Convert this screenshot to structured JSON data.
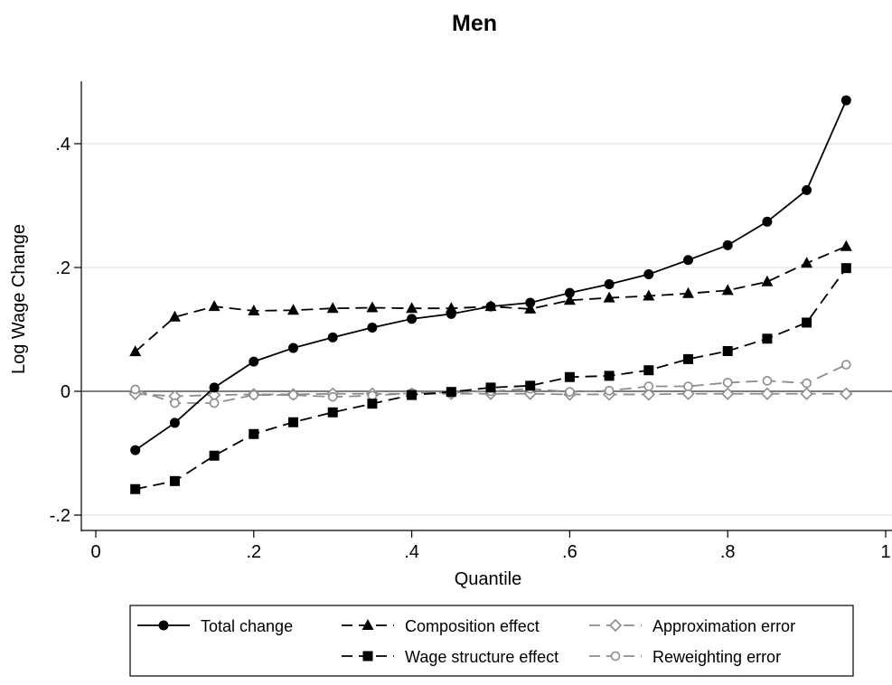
{
  "chart_data": {
    "type": "line",
    "title": "Men",
    "xlabel": "Quantile",
    "ylabel": "Log Wage Change",
    "xlim": [
      0,
      1
    ],
    "ylim": [
      -0.2,
      0.5
    ],
    "x_ticks": [
      0,
      0.2,
      0.4,
      0.6,
      0.8,
      1
    ],
    "x_tick_labels": [
      "0",
      ".2",
      ".4",
      ".6",
      ".8",
      "1"
    ],
    "y_ticks": [
      -0.2,
      0,
      0.2,
      0.4
    ],
    "y_tick_labels": [
      "-.2",
      "0",
      ".2",
      ".4"
    ],
    "grid": true,
    "reference_line": 0,
    "x": [
      0.05,
      0.1,
      0.15,
      0.2,
      0.25,
      0.3,
      0.35,
      0.4,
      0.45,
      0.5,
      0.55,
      0.6,
      0.65,
      0.7,
      0.75,
      0.8,
      0.85,
      0.9,
      0.95
    ],
    "series": [
      {
        "name": "Total change",
        "color": "#000000",
        "marker": "circle-filled",
        "dash": "solid",
        "values": [
          -0.095,
          -0.051,
          0.006,
          0.048,
          0.07,
          0.087,
          0.103,
          0.117,
          0.125,
          0.137,
          0.143,
          0.159,
          0.173,
          0.189,
          0.212,
          0.236,
          0.274,
          0.325,
          0.47
        ]
      },
      {
        "name": "Composition effect",
        "color": "#000000",
        "marker": "triangle-filled",
        "dash": "dashed",
        "values": [
          0.064,
          0.12,
          0.137,
          0.13,
          0.131,
          0.134,
          0.135,
          0.134,
          0.134,
          0.137,
          0.133,
          0.147,
          0.151,
          0.154,
          0.158,
          0.163,
          0.177,
          0.207,
          0.234
        ]
      },
      {
        "name": "Wage structure effect",
        "color": "#000000",
        "marker": "square-filled",
        "dash": "dashed",
        "values": [
          -0.158,
          -0.145,
          -0.104,
          -0.069,
          -0.05,
          -0.034,
          -0.02,
          -0.006,
          -0.001,
          0.006,
          0.009,
          0.023,
          0.025,
          0.034,
          0.052,
          0.065,
          0.085,
          0.111,
          0.199
        ]
      },
      {
        "name": "Approximation error",
        "color": "#8c8c8c",
        "marker": "diamond-open",
        "dash": "dashed",
        "values": [
          -0.004,
          -0.008,
          -0.006,
          -0.005,
          -0.005,
          -0.004,
          -0.004,
          -0.004,
          -0.004,
          -0.004,
          -0.004,
          -0.005,
          -0.005,
          -0.005,
          -0.004,
          -0.004,
          -0.004,
          -0.004,
          -0.004
        ]
      },
      {
        "name": "Reweighting error",
        "color": "#8c8c8c",
        "marker": "circle-open",
        "dash": "dashed",
        "values": [
          0.003,
          -0.019,
          -0.019,
          -0.006,
          -0.006,
          -0.009,
          -0.007,
          -0.003,
          -0.002,
          0.0,
          0.004,
          -0.001,
          0.001,
          0.008,
          0.008,
          0.014,
          0.017,
          0.013,
          0.043
        ]
      }
    ],
    "legend": {
      "position": "bottom",
      "layout": [
        [
          "Total change",
          "Composition effect",
          "Approximation error"
        ],
        [
          null,
          "Wage structure effect",
          "Reweighting error"
        ]
      ]
    }
  }
}
